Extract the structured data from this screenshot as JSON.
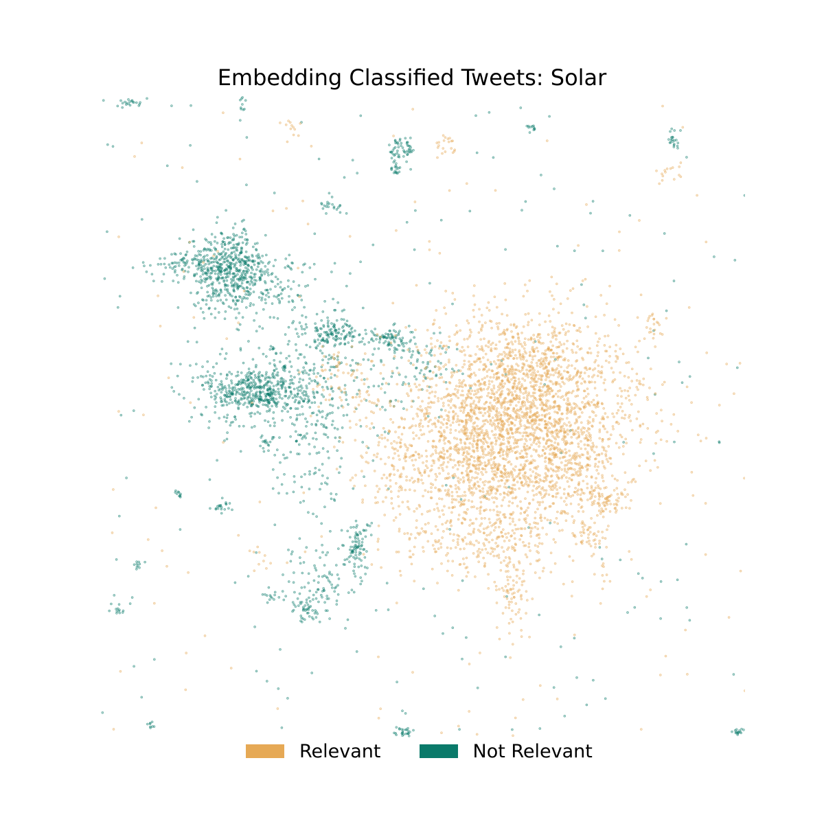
{
  "chart_data": {
    "type": "scatter",
    "title": "Embedding Classified Tweets: Solar",
    "xlabel": "",
    "ylabel": "",
    "axes_visible": false,
    "grid": false,
    "legend_position": "bottom-center",
    "xlim": [
      0,
      100
    ],
    "ylim": [
      0,
      100
    ],
    "series": [
      {
        "name": "Relevant",
        "color": "#e6a955",
        "clusters": [
          {
            "x": 64,
            "y": 48,
            "sx": 10,
            "sy": 9,
            "n": 1700
          },
          {
            "x": 66,
            "y": 54,
            "sx": 7,
            "sy": 6,
            "n": 900
          },
          {
            "x": 58,
            "y": 42,
            "sx": 5,
            "sy": 6,
            "n": 400
          },
          {
            "x": 72,
            "y": 42,
            "sx": 4,
            "sy": 4,
            "n": 220
          },
          {
            "x": 63,
            "y": 30,
            "sx": 3,
            "sy": 3,
            "n": 120
          },
          {
            "x": 64,
            "y": 22,
            "sx": 1,
            "sy": 3,
            "n": 60
          },
          {
            "x": 78,
            "y": 37,
            "sx": 2,
            "sy": 1,
            "n": 60
          },
          {
            "x": 76,
            "y": 32,
            "sx": 1,
            "sy": 2,
            "n": 40
          },
          {
            "x": 47,
            "y": 40,
            "sx": 3,
            "sy": 4,
            "n": 80
          },
          {
            "x": 40,
            "y": 53,
            "sx": 3,
            "sy": 2,
            "n": 40
          },
          {
            "x": 53,
            "y": 30,
            "sx": 3,
            "sy": 2,
            "n": 50
          },
          {
            "x": 36,
            "y": 58,
            "sx": 2,
            "sy": 2,
            "n": 30
          },
          {
            "x": 54,
            "y": 92,
            "sx": 1,
            "sy": 1,
            "n": 20
          },
          {
            "x": 88,
            "y": 88,
            "sx": 1,
            "sy": 1,
            "n": 15
          },
          {
            "x": 86,
            "y": 64,
            "sx": 1,
            "sy": 1,
            "n": 20
          },
          {
            "x": 25,
            "y": 28,
            "sx": 1,
            "sy": 1,
            "n": 10
          },
          {
            "x": 30,
            "y": 95,
            "sx": 1,
            "sy": 1,
            "n": 10
          },
          {
            "x": 78,
            "y": 25,
            "sx": 1,
            "sy": 1,
            "n": 8
          },
          {
            "x": 84,
            "y": 55,
            "sx": 1,
            "sy": 1,
            "n": 8
          }
        ]
      },
      {
        "name": "Not Relevant",
        "color": "#0a7a6a",
        "clusters": [
          {
            "x": 20,
            "y": 73,
            "sx": 3,
            "sy": 3,
            "n": 500
          },
          {
            "x": 14,
            "y": 74,
            "sx": 3,
            "sy": 1,
            "n": 80
          },
          {
            "x": 26,
            "y": 71,
            "sx": 3,
            "sy": 2,
            "n": 90
          },
          {
            "x": 24,
            "y": 54,
            "sx": 4,
            "sy": 2,
            "n": 450
          },
          {
            "x": 32,
            "y": 58,
            "sx": 7,
            "sy": 7,
            "n": 350
          },
          {
            "x": 36,
            "y": 63,
            "sx": 2,
            "sy": 1,
            "n": 100
          },
          {
            "x": 45,
            "y": 62,
            "sx": 2,
            "sy": 1,
            "n": 80
          },
          {
            "x": 50,
            "y": 58,
            "sx": 3,
            "sy": 2,
            "n": 60
          },
          {
            "x": 40,
            "y": 30,
            "sx": 1,
            "sy": 2,
            "n": 80
          },
          {
            "x": 35,
            "y": 24,
            "sx": 3,
            "sy": 3,
            "n": 90
          },
          {
            "x": 32,
            "y": 20,
            "sx": 1,
            "sy": 1,
            "n": 40
          },
          {
            "x": 32,
            "y": 45,
            "sx": 3,
            "sy": 8,
            "n": 120
          },
          {
            "x": 47,
            "y": 92,
            "sx": 1,
            "sy": 1,
            "n": 50
          },
          {
            "x": 46,
            "y": 89,
            "sx": 0.5,
            "sy": 1,
            "n": 20
          },
          {
            "x": 89,
            "y": 93,
            "sx": 0.4,
            "sy": 1,
            "n": 20
          },
          {
            "x": 5,
            "y": 99,
            "sx": 1,
            "sy": 0.3,
            "n": 20
          },
          {
            "x": 22,
            "y": 99,
            "sx": 0.3,
            "sy": 1,
            "n": 15
          },
          {
            "x": 47,
            "y": 1,
            "sx": 1,
            "sy": 0.4,
            "n": 25
          },
          {
            "x": 99,
            "y": 1,
            "sx": 0.5,
            "sy": 0.3,
            "n": 15
          },
          {
            "x": 19,
            "y": 36,
            "sx": 1,
            "sy": 0.5,
            "n": 20
          },
          {
            "x": 27,
            "y": 22,
            "sx": 1,
            "sy": 0.5,
            "n": 15
          },
          {
            "x": 12,
            "y": 38,
            "sx": 0.4,
            "sy": 0.3,
            "n": 10
          },
          {
            "x": 3,
            "y": 20,
            "sx": 0.5,
            "sy": 0.5,
            "n": 12
          },
          {
            "x": 6,
            "y": 27,
            "sx": 0.4,
            "sy": 0.4,
            "n": 10
          },
          {
            "x": 26,
            "y": 46,
            "sx": 0.5,
            "sy": 0.5,
            "n": 12
          },
          {
            "x": 36,
            "y": 83,
            "sx": 1,
            "sy": 0.5,
            "n": 20
          },
          {
            "x": 67,
            "y": 95,
            "sx": 0.4,
            "sy": 0.3,
            "n": 10
          },
          {
            "x": 8,
            "y": 2,
            "sx": 0.5,
            "sy": 0.3,
            "n": 8
          }
        ]
      }
    ],
    "noise_points": {
      "Relevant": 140,
      "Not Relevant": 200
    }
  },
  "legend": {
    "items": [
      {
        "label": "Relevant",
        "color": "#e6a955"
      },
      {
        "label": "Not Relevant",
        "color": "#0a7a6a"
      }
    ]
  }
}
